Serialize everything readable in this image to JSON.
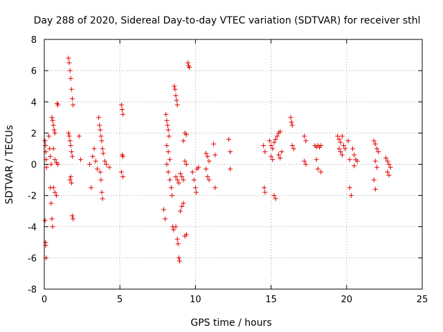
{
  "chart_data": {
    "type": "scatter",
    "title": "Day 288 of 2020, Sidereal Day-to-day VTEC variation (SDTVAR) for receiver sthl",
    "xlabel": "GPS time / hours",
    "ylabel": "SDTVAR / TECUs",
    "xlim": [
      0,
      25
    ],
    "ylim": [
      -8,
      8
    ],
    "xticks": [
      0,
      5,
      10,
      15,
      20,
      25
    ],
    "yticks": [
      -8,
      -6,
      -4,
      -2,
      0,
      2,
      4,
      6,
      8
    ],
    "grid": true,
    "marker": "+",
    "color": "#e00000",
    "series": [
      {
        "name": "SDTVAR",
        "points": [
          [
            0.05,
            1.5
          ],
          [
            0.08,
            1.2
          ],
          [
            0.1,
            0.8
          ],
          [
            0.12,
            0.3
          ],
          [
            0.15,
            -0.2
          ],
          [
            0.05,
            -3.6
          ],
          [
            0.08,
            -5.0
          ],
          [
            0.1,
            -5.2
          ],
          [
            0.12,
            -6.0
          ],
          [
            0.3,
            1.8
          ],
          [
            0.35,
            1.0
          ],
          [
            0.4,
            0.5
          ],
          [
            0.45,
            0.0
          ],
          [
            0.4,
            -1.5
          ],
          [
            0.45,
            -2.5
          ],
          [
            0.5,
            -3.5
          ],
          [
            0.55,
            -4.0
          ],
          [
            0.5,
            3.0
          ],
          [
            0.55,
            2.8
          ],
          [
            0.6,
            2.5
          ],
          [
            0.65,
            2.2
          ],
          [
            0.7,
            2.0
          ],
          [
            0.6,
            1.0
          ],
          [
            0.7,
            0.3
          ],
          [
            0.8,
            0.1
          ],
          [
            0.6,
            -1.5
          ],
          [
            0.7,
            -1.8
          ],
          [
            0.8,
            -2.0
          ],
          [
            0.9,
            0.0
          ],
          [
            0.85,
            3.9
          ],
          [
            0.9,
            3.8
          ],
          [
            1.6,
            6.8
          ],
          [
            1.65,
            6.5
          ],
          [
            1.7,
            6.0
          ],
          [
            1.75,
            5.5
          ],
          [
            1.8,
            4.8
          ],
          [
            1.85,
            4.2
          ],
          [
            1.9,
            3.8
          ],
          [
            1.6,
            2.0
          ],
          [
            1.65,
            1.8
          ],
          [
            1.7,
            1.5
          ],
          [
            1.75,
            1.2
          ],
          [
            1.8,
            0.8
          ],
          [
            1.85,
            0.5
          ],
          [
            1.7,
            -1.0
          ],
          [
            1.75,
            -0.8
          ],
          [
            1.8,
            -1.2
          ],
          [
            1.85,
            -3.3
          ],
          [
            1.9,
            -3.5
          ],
          [
            2.3,
            1.8
          ],
          [
            2.4,
            0.3
          ],
          [
            3.0,
            0.0
          ],
          [
            3.1,
            -1.5
          ],
          [
            3.2,
            0.5
          ],
          [
            3.3,
            1.0
          ],
          [
            3.4,
            0.2
          ],
          [
            3.5,
            -0.3
          ],
          [
            3.6,
            3.0
          ],
          [
            3.65,
            2.5
          ],
          [
            3.7,
            2.2
          ],
          [
            3.75,
            1.8
          ],
          [
            3.8,
            1.5
          ],
          [
            3.85,
            1.0
          ],
          [
            3.9,
            0.7
          ],
          [
            3.7,
            -0.5
          ],
          [
            3.75,
            -1.0
          ],
          [
            3.8,
            -1.8
          ],
          [
            3.85,
            -2.2
          ],
          [
            4.0,
            0.2
          ],
          [
            4.1,
            0.0
          ],
          [
            4.3,
            -0.2
          ],
          [
            5.1,
            3.8
          ],
          [
            5.15,
            3.5
          ],
          [
            5.2,
            3.2
          ],
          [
            5.15,
            0.6
          ],
          [
            5.2,
            0.5
          ],
          [
            5.1,
            -0.5
          ],
          [
            5.2,
            -0.8
          ],
          [
            7.9,
            -2.9
          ],
          [
            8.0,
            -3.5
          ],
          [
            8.05,
            3.2
          ],
          [
            8.1,
            2.8
          ],
          [
            8.15,
            2.5
          ],
          [
            8.2,
            2.2
          ],
          [
            8.25,
            1.8
          ],
          [
            8.1,
            1.2
          ],
          [
            8.2,
            0.8
          ],
          [
            8.3,
            0.3
          ],
          [
            8.1,
            0.0
          ],
          [
            8.2,
            -0.5
          ],
          [
            8.3,
            -1.0
          ],
          [
            8.4,
            -1.5
          ],
          [
            8.45,
            -2.0
          ],
          [
            8.5,
            -4.0
          ],
          [
            8.55,
            -4.2
          ],
          [
            8.6,
            5.0
          ],
          [
            8.65,
            4.8
          ],
          [
            8.7,
            4.4
          ],
          [
            8.75,
            4.1
          ],
          [
            8.8,
            3.8
          ],
          [
            8.7,
            -0.8
          ],
          [
            8.8,
            -1.0
          ],
          [
            8.9,
            -1.2
          ],
          [
            8.7,
            -4.0
          ],
          [
            8.8,
            -4.8
          ],
          [
            8.85,
            -5.1
          ],
          [
            8.9,
            -6.0
          ],
          [
            8.95,
            -6.2
          ],
          [
            9.0,
            -3.0
          ],
          [
            9.1,
            -2.7
          ],
          [
            9.2,
            -2.5
          ],
          [
            9.0,
            -0.6
          ],
          [
            9.1,
            -0.8
          ],
          [
            9.2,
            -1.0
          ],
          [
            9.3,
            0.2
          ],
          [
            9.4,
            0.0
          ],
          [
            9.3,
            -4.6
          ],
          [
            9.4,
            -4.5
          ],
          [
            9.2,
            1.5
          ],
          [
            9.3,
            2.0
          ],
          [
            9.4,
            1.9
          ],
          [
            9.5,
            6.5
          ],
          [
            9.55,
            6.3
          ],
          [
            9.6,
            6.2
          ],
          [
            9.8,
            -0.5
          ],
          [
            9.9,
            -1.0
          ],
          [
            10.0,
            -1.5
          ],
          [
            10.05,
            -1.8
          ],
          [
            10.1,
            -0.3
          ],
          [
            10.2,
            -0.2
          ],
          [
            10.7,
            0.7
          ],
          [
            10.8,
            0.5
          ],
          [
            10.9,
            0.2
          ],
          [
            10.7,
            -0.3
          ],
          [
            10.8,
            -0.8
          ],
          [
            10.9,
            -1.0
          ],
          [
            11.2,
            1.3
          ],
          [
            11.3,
            0.6
          ],
          [
            11.3,
            -1.5
          ],
          [
            12.2,
            1.6
          ],
          [
            12.3,
            0.8
          ],
          [
            12.3,
            -0.3
          ],
          [
            14.5,
            1.2
          ],
          [
            14.6,
            0.8
          ],
          [
            14.55,
            -1.5
          ],
          [
            14.6,
            -1.8
          ],
          [
            14.9,
            1.5
          ],
          [
            15.0,
            1.2
          ],
          [
            15.1,
            1.0
          ],
          [
            15.2,
            1.4
          ],
          [
            15.3,
            1.6
          ],
          [
            15.4,
            1.8
          ],
          [
            15.5,
            2.0
          ],
          [
            15.6,
            2.1
          ],
          [
            15.0,
            0.5
          ],
          [
            15.1,
            0.3
          ],
          [
            15.2,
            -2.0
          ],
          [
            15.3,
            -2.2
          ],
          [
            15.5,
            0.6
          ],
          [
            15.6,
            0.4
          ],
          [
            15.7,
            0.8
          ],
          [
            16.3,
            3.0
          ],
          [
            16.35,
            2.7
          ],
          [
            16.4,
            2.5
          ],
          [
            16.4,
            1.2
          ],
          [
            16.5,
            1.0
          ],
          [
            17.2,
            1.8
          ],
          [
            17.3,
            1.5
          ],
          [
            17.2,
            0.2
          ],
          [
            17.3,
            0.0
          ],
          [
            17.9,
            1.2
          ],
          [
            18.0,
            1.1
          ],
          [
            18.1,
            1.2
          ],
          [
            18.2,
            1.1
          ],
          [
            18.3,
            1.2
          ],
          [
            18.0,
            0.3
          ],
          [
            18.1,
            -0.3
          ],
          [
            18.3,
            -0.5
          ],
          [
            19.4,
            1.8
          ],
          [
            19.5,
            1.6
          ],
          [
            19.6,
            1.4
          ],
          [
            19.7,
            1.8
          ],
          [
            19.5,
            1.0
          ],
          [
            19.6,
            0.8
          ],
          [
            19.7,
            0.6
          ],
          [
            19.8,
            1.2
          ],
          [
            19.9,
            1.0
          ],
          [
            20.1,
            1.5
          ],
          [
            20.2,
            0.3
          ],
          [
            20.2,
            -1.5
          ],
          [
            20.3,
            -2.0
          ],
          [
            20.4,
            1.0
          ],
          [
            20.5,
            0.6
          ],
          [
            20.6,
            0.3
          ],
          [
            20.7,
            0.2
          ],
          [
            20.5,
            -0.1
          ],
          [
            21.8,
            1.5
          ],
          [
            21.9,
            1.3
          ],
          [
            22.0,
            1.0
          ],
          [
            22.1,
            0.8
          ],
          [
            21.9,
            0.2
          ],
          [
            22.0,
            -0.2
          ],
          [
            21.8,
            -1.0
          ],
          [
            21.9,
            -1.6
          ],
          [
            22.6,
            0.4
          ],
          [
            22.7,
            0.2
          ],
          [
            22.8,
            0.0
          ],
          [
            22.9,
            -0.2
          ],
          [
            22.7,
            -0.5
          ],
          [
            22.8,
            -0.7
          ]
        ]
      }
    ]
  }
}
